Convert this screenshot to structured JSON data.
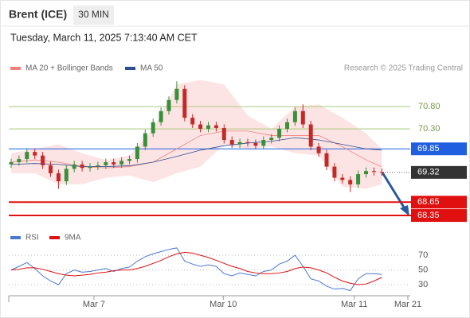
{
  "header": {
    "title": "Brent (ICE)",
    "timeframe": "30 MIN",
    "timestamp": "Tuesday, March 11, 2025 7:13:40 AM CET"
  },
  "chart_data": {
    "type": "candlestick",
    "legend": [
      {
        "name": "MA 20 + Bollinger Bands",
        "color": "#f08080"
      },
      {
        "name": "MA 50",
        "color": "#2b4f8f"
      }
    ],
    "credit": "Research © 2025 Trading Central",
    "up_color": "#3a8f3a",
    "down_color": "#c62828",
    "open": [
      69.5,
      69.55,
      69.62,
      69.78,
      69.7,
      69.48,
      69.3,
      69.12,
      69.4,
      69.5,
      69.42,
      69.45,
      69.48,
      69.55,
      69.5,
      69.58,
      69.62,
      69.9,
      70.2,
      70.45,
      70.7,
      70.95,
      71.2,
      70.55,
      70.4,
      70.3,
      70.38,
      70.32,
      70.05,
      69.95,
      70.0,
      69.98,
      69.92,
      70.05,
      70.1,
      70.3,
      70.45,
      70.7,
      70.4,
      69.9,
      69.75,
      69.45,
      69.2,
      69.15,
      69.05,
      69.28,
      69.35,
      69.33
    ],
    "high": [
      69.63,
      69.7,
      69.86,
      69.86,
      69.78,
      69.56,
      69.38,
      69.48,
      69.58,
      69.58,
      69.53,
      69.56,
      69.63,
      69.63,
      69.66,
      69.7,
      69.98,
      70.28,
      70.53,
      70.78,
      71.03,
      71.37,
      71.28,
      70.63,
      70.48,
      70.46,
      70.46,
      70.4,
      70.13,
      70.08,
      70.08,
      70.06,
      70.13,
      70.18,
      70.38,
      70.53,
      70.78,
      70.85,
      70.48,
      69.98,
      69.83,
      69.53,
      69.28,
      69.23,
      69.36,
      69.43,
      69.43,
      69.41
    ],
    "low": [
      69.42,
      69.47,
      69.54,
      69.62,
      69.4,
      69.22,
      68.95,
      69.04,
      69.32,
      69.34,
      69.34,
      69.37,
      69.4,
      69.42,
      69.42,
      69.5,
      69.54,
      69.82,
      70.12,
      70.37,
      70.62,
      70.87,
      70.47,
      70.32,
      70.22,
      70.22,
      70.24,
      69.97,
      69.87,
      69.87,
      69.9,
      69.84,
      69.84,
      69.97,
      70.02,
      70.22,
      70.37,
      70.32,
      69.82,
      69.67,
      69.37,
      69.12,
      69.07,
      68.88,
      68.97,
      69.2,
      69.25,
      69.24
    ],
    "close": [
      69.55,
      69.62,
      69.78,
      69.7,
      69.48,
      69.3,
      69.12,
      69.4,
      69.5,
      69.42,
      69.45,
      69.48,
      69.55,
      69.5,
      69.58,
      69.62,
      69.9,
      70.2,
      70.45,
      70.7,
      70.95,
      71.2,
      70.55,
      70.4,
      70.3,
      70.38,
      70.32,
      70.05,
      69.95,
      70.0,
      69.98,
      69.92,
      70.05,
      70.1,
      70.3,
      70.45,
      70.7,
      70.4,
      69.9,
      69.75,
      69.45,
      69.2,
      69.15,
      69.05,
      69.28,
      69.35,
      69.33,
      69.32
    ],
    "indicator_x": [
      0,
      3,
      6,
      9,
      12,
      15,
      18,
      21,
      24,
      27,
      30,
      33,
      36,
      39,
      42,
      45,
      47
    ],
    "ma20": [
      69.55,
      69.6,
      69.55,
      69.45,
      69.42,
      69.45,
      69.55,
      69.85,
      70.15,
      70.25,
      70.25,
      70.15,
      70.15,
      70.15,
      69.9,
      69.6,
      69.45
    ],
    "ma50": [
      69.5,
      69.52,
      69.5,
      69.45,
      69.45,
      69.47,
      69.55,
      69.68,
      69.82,
      69.92,
      69.98,
      70.02,
      70.1,
      70.05,
      69.95,
      69.85,
      69.82
    ],
    "bollinger_upper": [
      69.75,
      69.85,
      69.95,
      69.75,
      69.6,
      69.7,
      70.3,
      71.3,
      71.4,
      71.3,
      70.6,
      70.3,
      70.8,
      70.85,
      70.55,
      70.2,
      69.85
    ],
    "bollinger_lower": [
      69.3,
      69.3,
      69.05,
      69.05,
      69.2,
      69.25,
      69.1,
      69.3,
      69.45,
      69.95,
      69.85,
      69.9,
      69.75,
      69.7,
      69.0,
      68.95,
      69.05
    ],
    "ylim": [
      68.19,
      71.5
    ],
    "levels": [
      {
        "value": 70.8,
        "label": "70.80",
        "color": "#a8c878",
        "style": "text"
      },
      {
        "value": 70.3,
        "label": "70.30",
        "color": "#a8c878",
        "style": "text"
      },
      {
        "value": 69.85,
        "label": "69.85",
        "color": "#1f5fe0",
        "style": "box"
      },
      {
        "value": 69.32,
        "label": "69.32",
        "color": "#333333",
        "style": "current"
      },
      {
        "value": 68.65,
        "label": "68.65",
        "color": "#e01010",
        "style": "box"
      },
      {
        "value": 68.35,
        "label": "68.35",
        "color": "#e01010",
        "style": "box"
      }
    ],
    "xticks": [
      {
        "value": 10.5,
        "label": "Mar 7"
      },
      {
        "value": 26.9,
        "label": "Mar 10"
      },
      {
        "value": 43.5,
        "label": "Mar 11"
      },
      {
        "value": 50.3,
        "label": "Mar 21"
      }
    ],
    "rsi": {
      "legend": [
        {
          "name": "RSI",
          "color": "#4a78d0"
        },
        {
          "name": "9MA",
          "color": "#e01010"
        }
      ],
      "values": [
        50,
        55,
        60,
        52,
        42,
        35,
        30,
        45,
        50,
        47,
        48,
        50,
        52,
        48,
        52,
        54,
        62,
        68,
        72,
        75,
        78,
        80,
        62,
        58,
        55,
        57,
        55,
        45,
        42,
        46,
        44,
        42,
        48,
        50,
        58,
        62,
        70,
        55,
        38,
        35,
        28,
        24,
        25,
        22,
        38,
        45,
        45,
        44
      ],
      "ma": [
        50,
        51,
        53,
        53,
        51,
        48,
        45,
        43,
        42,
        43,
        44,
        46,
        47,
        49,
        50,
        50,
        52,
        55,
        59,
        63,
        68,
        72,
        74,
        73,
        70,
        67,
        63,
        59,
        55,
        52,
        48,
        46,
        45,
        45,
        46,
        48,
        52,
        54,
        53,
        50,
        46,
        40,
        35,
        32,
        30,
        31,
        35,
        40
      ],
      "ylim": [
        15,
        82
      ],
      "yticks": [
        70,
        50,
        30
      ]
    }
  }
}
